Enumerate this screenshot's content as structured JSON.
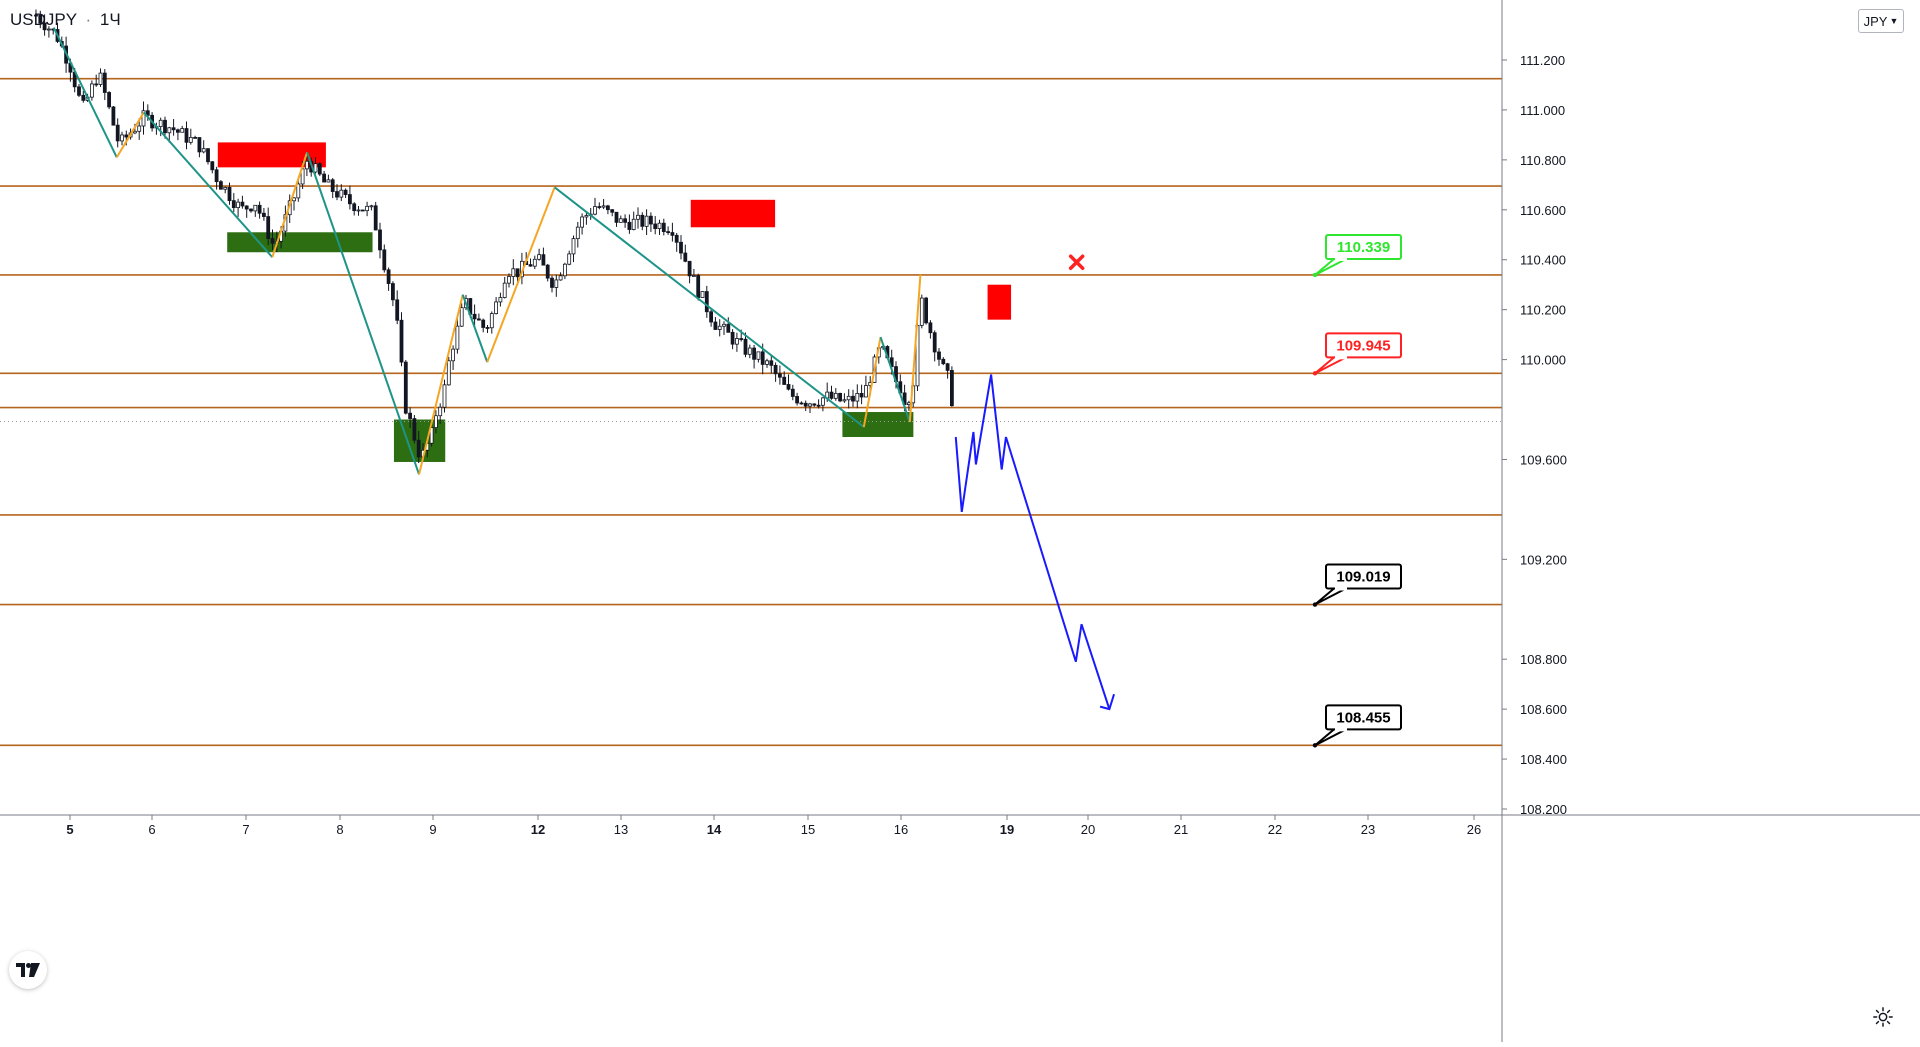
{
  "header": {
    "symbol": "USDJPY",
    "separator": "·",
    "interval": "1Ч",
    "currency_button": "JPY"
  },
  "icons": {
    "logo": "tradingview-logo-icon",
    "settings": "gear-icon",
    "invalidation": "red-x-icon",
    "currency_dropdown": "chevron-down-icon"
  },
  "colors": {
    "candle": "#131722",
    "level_line": "#b5651d",
    "level_label_bg": "#b5651d",
    "current_price_bg": "#d1d4dc",
    "up_swing": "#f5a623",
    "down_swing": "#1e9488",
    "supply_zone": "#ff0000",
    "demand_zone": "#2e6e13",
    "projection": "#1a1aff",
    "target_green": "#2ee62e",
    "target_red": "#ff2222",
    "target_black": "#000000"
  },
  "chart_data": {
    "type": "candlestick",
    "symbol": "USDJPY",
    "timeframe": "1Ч",
    "ylim": [
      108.15,
      111.45
    ],
    "price_axis_ticks": [
      "111.200",
      "111.000",
      "110.800",
      "110.600",
      "110.400",
      "110.200",
      "110.000",
      "109.600",
      "109.200",
      "108.800",
      "108.600",
      "108.400",
      "108.200"
    ],
    "time_axis_ticks": [
      {
        "label": "5",
        "bold": true
      },
      {
        "label": "6",
        "bold": false
      },
      {
        "label": "7",
        "bold": false
      },
      {
        "label": "8",
        "bold": false
      },
      {
        "label": "9",
        "bold": false
      },
      {
        "label": "12",
        "bold": true
      },
      {
        "label": "13",
        "bold": false
      },
      {
        "label": "14",
        "bold": true
      },
      {
        "label": "15",
        "bold": false
      },
      {
        "label": "16",
        "bold": false
      },
      {
        "label": "19",
        "bold": true
      },
      {
        "label": "20",
        "bold": false
      },
      {
        "label": "21",
        "bold": false
      },
      {
        "label": "22",
        "bold": false
      },
      {
        "label": "23",
        "bold": false
      },
      {
        "label": "26",
        "bold": false
      }
    ],
    "horizontal_levels": [
      {
        "price": 111.125,
        "label": "111.125"
      },
      {
        "price": 110.695,
        "label": "110.695"
      },
      {
        "price": 110.339,
        "label": "110.339"
      },
      {
        "price": 109.945,
        "label": "109.945"
      },
      {
        "price": 109.808,
        "label": "109.808"
      },
      {
        "price": 109.378,
        "label": "109.378"
      },
      {
        "price": 109.019,
        "label": "109.019"
      },
      {
        "price": 108.455,
        "label": "108.455"
      }
    ],
    "current_price": {
      "price": 109.752,
      "label": "109.752"
    },
    "target_callouts": [
      {
        "label": "110.339",
        "price": 110.339,
        "style": "green"
      },
      {
        "label": "109.945",
        "price": 109.945,
        "style": "red"
      },
      {
        "label": "109.019",
        "price": 109.019,
        "style": "black"
      },
      {
        "label": "108.455",
        "price": 108.455,
        "style": "black"
      }
    ],
    "supply_zones": [
      {
        "t0": 6.7,
        "t1": 7.85,
        "p_low": 110.77,
        "p_high": 110.87
      },
      {
        "t0": 13.75,
        "t1": 14.65,
        "p_low": 110.53,
        "p_high": 110.64
      },
      {
        "t0": 18.45,
        "t1": 19.05,
        "p_low": 110.16,
        "p_high": 110.3
      }
    ],
    "demand_zones": [
      {
        "t0": 6.8,
        "t1": 8.35,
        "p_low": 110.43,
        "p_high": 110.51
      },
      {
        "t0": 8.58,
        "t1": 9.35,
        "p_low": 109.59,
        "p_high": 109.76
      },
      {
        "t0": 15.37,
        "t1": 16.35,
        "p_low": 109.69,
        "p_high": 109.79
      }
    ],
    "swing_path": [
      [
        4.88,
        111.33
      ],
      [
        5.57,
        110.81
      ],
      [
        5.9,
        110.99
      ],
      [
        7.28,
        110.41
      ],
      [
        7.65,
        110.83
      ],
      [
        8.85,
        109.54
      ],
      [
        9.85,
        110.26
      ],
      [
        10.55,
        109.99
      ],
      [
        12.2,
        110.69
      ],
      [
        15.6,
        109.73
      ],
      [
        15.78,
        110.09
      ],
      [
        16.25,
        109.75
      ],
      [
        16.55,
        110.34
      ]
    ],
    "projection_path": [
      [
        17.55,
        109.69
      ],
      [
        17.72,
        109.39
      ],
      [
        18.05,
        109.71
      ],
      [
        18.12,
        109.58
      ],
      [
        18.55,
        109.94
      ],
      [
        18.85,
        109.56
      ],
      [
        18.97,
        109.69
      ],
      [
        19.85,
        108.79
      ],
      [
        19.92,
        108.94
      ],
      [
        20.23,
        108.6
      ]
    ],
    "projection_arrowhead": [
      [
        20.13,
        108.61
      ],
      [
        20.23,
        108.6
      ],
      [
        20.28,
        108.66
      ]
    ],
    "invalidation_mark": {
      "t": 19.86,
      "price": 110.39
    },
    "price_path": [
      [
        4.75,
        111.38
      ],
      [
        4.9,
        111.3
      ],
      [
        5.15,
        111.0
      ],
      [
        5.35,
        111.15
      ],
      [
        5.6,
        110.86
      ],
      [
        5.9,
        110.97
      ],
      [
        6.2,
        110.93
      ],
      [
        6.5,
        110.86
      ],
      [
        6.7,
        110.72
      ],
      [
        6.95,
        110.6
      ],
      [
        7.1,
        110.63
      ],
      [
        7.3,
        110.45
      ],
      [
        7.5,
        110.64
      ],
      [
        7.65,
        110.8
      ],
      [
        7.85,
        110.7
      ],
      [
        8.1,
        110.63
      ],
      [
        8.35,
        110.59
      ],
      [
        8.6,
        110.19
      ],
      [
        8.7,
        109.82
      ],
      [
        8.87,
        109.6
      ],
      [
        9.1,
        109.8
      ],
      [
        9.3,
        109.86
      ],
      [
        9.5,
        110.03
      ],
      [
        9.7,
        110.12
      ],
      [
        9.9,
        110.23
      ],
      [
        10.2,
        110.17
      ],
      [
        10.5,
        110.12
      ],
      [
        10.8,
        110.22
      ],
      [
        11.1,
        110.36
      ],
      [
        11.4,
        110.35
      ],
      [
        11.7,
        110.38
      ],
      [
        12.0,
        110.4
      ],
      [
        12.2,
        110.3
      ],
      [
        12.5,
        110.55
      ],
      [
        12.7,
        110.62
      ],
      [
        13.0,
        110.55
      ],
      [
        13.3,
        110.55
      ],
      [
        13.55,
        110.53
      ],
      [
        13.8,
        110.3
      ],
      [
        14.0,
        110.15
      ],
      [
        14.3,
        110.05
      ],
      [
        14.6,
        109.97
      ],
      [
        14.8,
        109.86
      ],
      [
        15.0,
        109.83
      ],
      [
        15.2,
        109.85
      ],
      [
        15.4,
        109.83
      ],
      [
        15.6,
        109.86
      ],
      [
        15.78,
        110.05
      ],
      [
        15.95,
        109.91
      ],
      [
        16.15,
        109.82
      ],
      [
        16.35,
        109.92
      ],
      [
        16.55,
        110.25
      ],
      [
        16.75,
        110.15
      ],
      [
        17.0,
        110.04
      ],
      [
        17.2,
        109.96
      ],
      [
        17.35,
        109.92
      ],
      [
        17.5,
        109.79
      ]
    ]
  }
}
